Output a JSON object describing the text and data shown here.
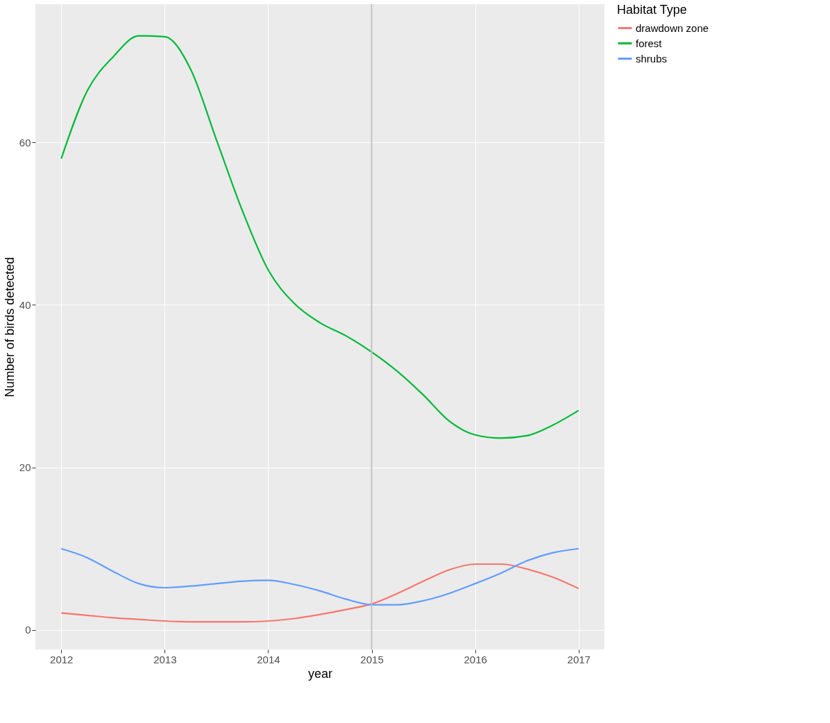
{
  "chart_data": {
    "type": "line",
    "xlabel": "year",
    "ylabel": "Number of birds detected",
    "legend_title": "Habitat Type",
    "x": [
      2012,
      2012.25,
      2012.5,
      2012.75,
      2013,
      2013.25,
      2013.5,
      2013.75,
      2014,
      2014.25,
      2014.5,
      2014.75,
      2015,
      2015.25,
      2015.5,
      2015.75,
      2016,
      2016.25,
      2016.5,
      2016.75,
      2017
    ],
    "series": [
      {
        "name": "drawdown zone",
        "color": "#f8766d",
        "values": [
          2.1,
          1.8,
          1.5,
          1.3,
          1.1,
          1.0,
          1.0,
          1.0,
          1.1,
          1.4,
          1.9,
          2.5,
          3.2,
          4.5,
          6.0,
          7.4,
          8.1,
          8.1,
          7.5,
          6.5,
          5.1
        ]
      },
      {
        "name": "forest",
        "color": "#00ba38",
        "values": [
          58,
          66.3,
          70.5,
          73.1,
          73.0,
          69.0,
          60.3,
          51.6,
          44.3,
          40.2,
          37.8,
          36.2,
          34.2,
          31.8,
          28.9,
          25.7,
          24.0,
          23.6,
          23.9,
          25.2,
          27.0
        ]
      },
      {
        "name": "shrubs",
        "color": "#619cff",
        "values": [
          10,
          8.9,
          7.2,
          5.7,
          5.2,
          5.4,
          5.7,
          6.0,
          6.1,
          5.6,
          4.8,
          3.8,
          3.1,
          3.1,
          3.6,
          4.5,
          5.7,
          7.0,
          8.5,
          9.5,
          10.0
        ]
      }
    ],
    "xlim": [
      2011.75,
      2017.25
    ],
    "xticks": [
      2012,
      2013,
      2014,
      2015,
      2016,
      2017
    ],
    "ylim": [
      -2.4,
      77
    ],
    "yticks": [
      0,
      20,
      40,
      60
    ],
    "ref_lines": [
      {
        "axis": "x",
        "value": 2015,
        "color": "#bebebe"
      }
    ],
    "grid": true,
    "legend": "right",
    "marker": "none",
    "line_style": "solid"
  }
}
